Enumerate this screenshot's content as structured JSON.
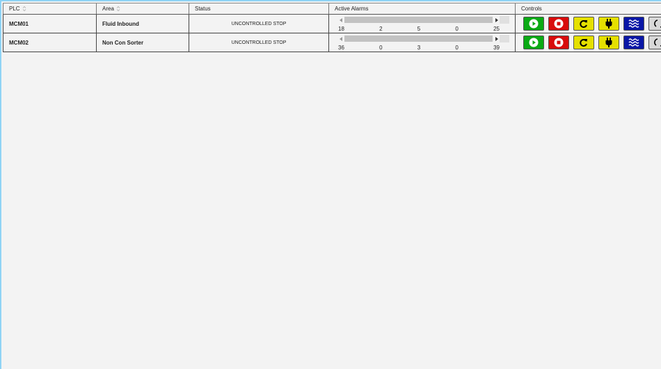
{
  "table": {
    "headers": [
      "PLC",
      "Area",
      "Status",
      "Active Alarms",
      "Controls"
    ],
    "rows": [
      {
        "plc": "MCM01",
        "area": "Fluid Inbound",
        "status": "UNCONTROLLED STOP",
        "alarms": [
          "18",
          "2",
          "5",
          "0",
          "25"
        ]
      },
      {
        "plc": "MCM02",
        "area": "Non Con Sorter",
        "status": "UNCONTROLLED STOP",
        "alarms": [
          "36",
          "0",
          "3",
          "0",
          "39"
        ]
      }
    ]
  },
  "controls": [
    "start",
    "stop",
    "reset",
    "power",
    "flow",
    "sync"
  ],
  "colors": {
    "start": "#0aaa14",
    "stop": "#d80c0c",
    "reset": "#e5e000",
    "power": "#e5e000",
    "flow": "#0a17a6",
    "sync": "#d8d8d8"
  }
}
